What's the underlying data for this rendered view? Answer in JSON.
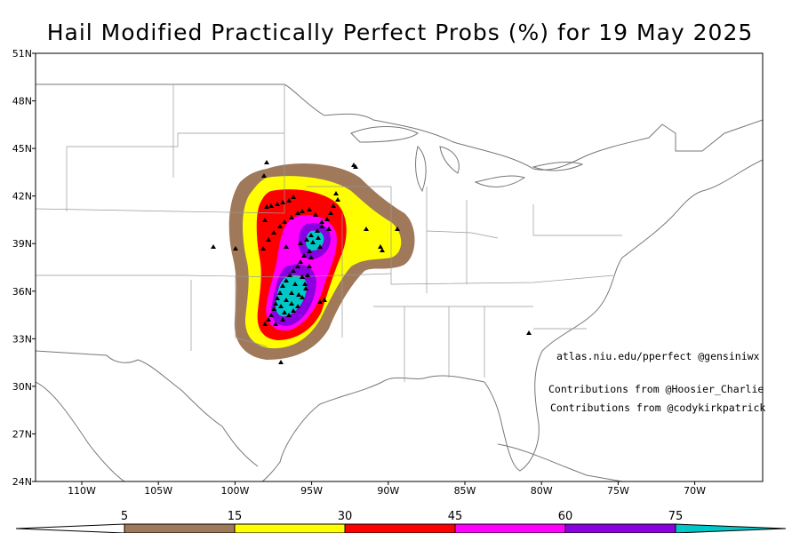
{
  "title": "Hail Modified Practically Perfect Probs (%) for 19 May 2025",
  "lat_labels": [
    "51N",
    "48N",
    "45N",
    "42N",
    "39N",
    "36N",
    "33N",
    "30N",
    "27N",
    "24N"
  ],
  "lon_labels": [
    "110W",
    "105W",
    "100W",
    "95W",
    "90W",
    "85W",
    "80W",
    "75W",
    "70W"
  ],
  "credits": {
    "site": "atlas.niu.edu/pperfect @gensiniwx",
    "contrib1": "Contributions from @Hoosier_Charlie",
    "contrib2": "Contributions from @codykirkpatrick"
  },
  "colorbar": {
    "labels": [
      "5",
      "15",
      "30",
      "45",
      "60",
      "75"
    ],
    "colors": {
      "c5": "#a0785a",
      "c15": "#ffff00",
      "c30": "#ff0000",
      "c45": "#ff00ff",
      "c60": "#8a00e0",
      "c75": "#00c8c8"
    }
  },
  "legend_meaning": "probability contours (%)"
}
